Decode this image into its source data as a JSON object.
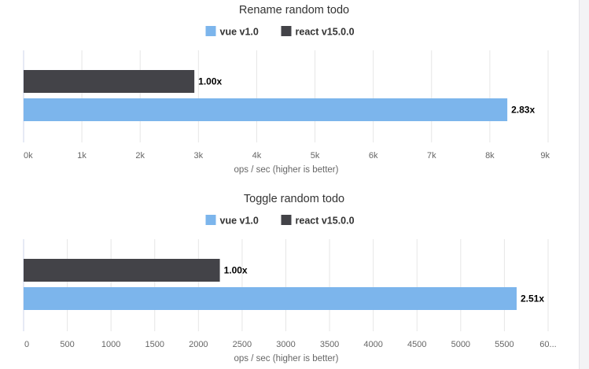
{
  "colors": {
    "vue": "#7cb5ec",
    "react": "#434348",
    "grid": "#e6e6e6",
    "axis": "#ccd6eb"
  },
  "chart_data": [
    {
      "type": "bar",
      "orientation": "horizontal",
      "title": "Rename random todo",
      "xlabel": "ops / sec (higher is better)",
      "legend": [
        "vue v1.0",
        "react v15.0.0"
      ],
      "legend_placement": "top",
      "grid": true,
      "xlim": [
        0,
        9000
      ],
      "tick_labels": [
        "0k",
        "1k",
        "2k",
        "3k",
        "4k",
        "5k",
        "6k",
        "7k",
        "8k",
        "9k"
      ],
      "series": [
        {
          "name": "react v15.0.0",
          "value": 2930,
          "label": "1.00x",
          "color": "#434348"
        },
        {
          "name": "vue v1.0",
          "value": 8300,
          "label": "2.83x",
          "color": "#7cb5ec"
        }
      ]
    },
    {
      "type": "bar",
      "orientation": "horizontal",
      "title": "Toggle random todo",
      "xlabel": "ops / sec (higher is better)",
      "legend": [
        "vue v1.0",
        "react v15.0.0"
      ],
      "legend_placement": "top",
      "grid": true,
      "xlim": [
        0,
        6000
      ],
      "tick_labels": [
        "0",
        "500",
        "1000",
        "1500",
        "2000",
        "2500",
        "3000",
        "3500",
        "4000",
        "4500",
        "5000",
        "5500",
        "60..."
      ],
      "series": [
        {
          "name": "react v15.0.0",
          "value": 2245,
          "label": "1.00x",
          "color": "#434348"
        },
        {
          "name": "vue v1.0",
          "value": 5640,
          "label": "2.51x",
          "color": "#7cb5ec"
        }
      ]
    }
  ]
}
